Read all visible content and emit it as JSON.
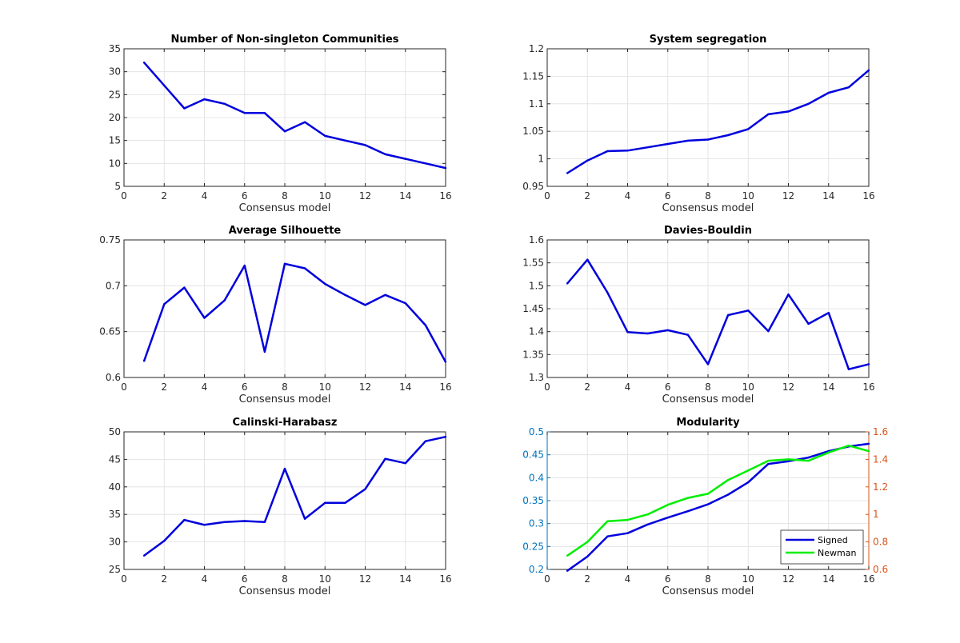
{
  "chart_data": [
    {
      "type": "line",
      "title": "Number of Non-singleton Communities",
      "xlabel": "Consensus model",
      "ylabel": "",
      "xlim": [
        0,
        16
      ],
      "ylim": [
        5,
        35
      ],
      "xticks": [
        0,
        2,
        4,
        6,
        8,
        10,
        12,
        14,
        16
      ],
      "yticks": [
        5,
        10,
        15,
        20,
        25,
        30,
        35
      ],
      "grid": true,
      "x": [
        1,
        2,
        3,
        4,
        5,
        6,
        7,
        8,
        9,
        10,
        11,
        12,
        13,
        14,
        15,
        16
      ],
      "series": [
        {
          "color": "#0000dd",
          "values": [
            32,
            27,
            22,
            24,
            23,
            21,
            21,
            17,
            19,
            16,
            15,
            14,
            12,
            11,
            10,
            9
          ]
        }
      ]
    },
    {
      "type": "line",
      "title": "System segregation",
      "xlabel": "Consensus model",
      "ylabel": "",
      "xlim": [
        0,
        16
      ],
      "ylim": [
        0.95,
        1.2
      ],
      "xticks": [
        0,
        2,
        4,
        6,
        8,
        10,
        12,
        14,
        16
      ],
      "yticks": [
        0.95,
        1,
        1.05,
        1.1,
        1.15,
        1.2
      ],
      "grid": true,
      "x": [
        1,
        2,
        3,
        4,
        5,
        6,
        7,
        8,
        9,
        10,
        11,
        12,
        13,
        14,
        15,
        16
      ],
      "series": [
        {
          "color": "#0000dd",
          "values": [
            0.974,
            0.997,
            1.014,
            1.015,
            1.021,
            1.027,
            1.033,
            1.035,
            1.043,
            1.054,
            1.081,
            1.086,
            1.1,
            1.12,
            1.13,
            1.161
          ]
        }
      ]
    },
    {
      "type": "line",
      "title": "Average Silhouette",
      "xlabel": "Consensus model",
      "ylabel": "",
      "xlim": [
        0,
        16
      ],
      "ylim": [
        0.6,
        0.75
      ],
      "xticks": [
        0,
        2,
        4,
        6,
        8,
        10,
        12,
        14,
        16
      ],
      "yticks": [
        0.6,
        0.65,
        0.7,
        0.75
      ],
      "grid": true,
      "x": [
        1,
        2,
        3,
        4,
        5,
        6,
        7,
        8,
        9,
        10,
        11,
        12,
        13,
        14,
        15,
        16
      ],
      "series": [
        {
          "color": "#0000dd",
          "values": [
            0.618,
            0.68,
            0.698,
            0.665,
            0.684,
            0.722,
            0.628,
            0.724,
            0.719,
            0.702,
            0.69,
            0.679,
            0.69,
            0.681,
            0.657,
            0.617
          ]
        }
      ]
    },
    {
      "type": "line",
      "title": "Davies-Bouldin",
      "xlabel": "Consensus model",
      "ylabel": "",
      "xlim": [
        0,
        16
      ],
      "ylim": [
        1.3,
        1.6
      ],
      "xticks": [
        0,
        2,
        4,
        6,
        8,
        10,
        12,
        14,
        16
      ],
      "yticks": [
        1.3,
        1.35,
        1.4,
        1.45,
        1.5,
        1.55,
        1.6
      ],
      "grid": true,
      "x": [
        1,
        2,
        3,
        4,
        5,
        6,
        7,
        8,
        9,
        10,
        11,
        12,
        13,
        14,
        15,
        16
      ],
      "series": [
        {
          "color": "#0000dd",
          "values": [
            1.505,
            1.557,
            1.485,
            1.399,
            1.396,
            1.403,
            1.393,
            1.329,
            1.436,
            1.446,
            1.401,
            1.481,
            1.417,
            1.441,
            1.318,
            1.329
          ]
        }
      ]
    },
    {
      "type": "line",
      "title": "Calinski-Harabasz",
      "xlabel": "Consensus model",
      "ylabel": "",
      "xlim": [
        0,
        16
      ],
      "ylim": [
        25,
        50
      ],
      "xticks": [
        0,
        2,
        4,
        6,
        8,
        10,
        12,
        14,
        16
      ],
      "yticks": [
        25,
        30,
        35,
        40,
        45,
        50
      ],
      "grid": true,
      "x": [
        1,
        2,
        3,
        4,
        5,
        6,
        7,
        8,
        9,
        10,
        11,
        12,
        13,
        14,
        15,
        16
      ],
      "series": [
        {
          "color": "#0000dd",
          "values": [
            27.5,
            30.2,
            34.0,
            33.1,
            33.6,
            33.8,
            33.6,
            43.3,
            34.2,
            37.1,
            37.1,
            39.6,
            45.1,
            44.3,
            48.3,
            49.1
          ]
        }
      ]
    },
    {
      "type": "line",
      "title": "Modularity",
      "xlabel": "Consensus model",
      "ylabel": "",
      "xlim": [
        0,
        16
      ],
      "ylim": [
        0.2,
        0.5
      ],
      "ylim_right": [
        0.6,
        1.6
      ],
      "xticks": [
        0,
        2,
        4,
        6,
        8,
        10,
        12,
        14,
        16
      ],
      "yticks": [
        0.2,
        0.25,
        0.3,
        0.35,
        0.4,
        0.45,
        0.5
      ],
      "yticks_right": [
        0.6,
        0.8,
        1,
        1.2,
        1.4,
        1.6
      ],
      "left_axis_color": "#0072bd",
      "right_axis_color": "#d95319",
      "grid": true,
      "legend_position": "bottom-right",
      "x": [
        1,
        2,
        3,
        4,
        5,
        6,
        7,
        8,
        9,
        10,
        11,
        12,
        13,
        14,
        15,
        16
      ],
      "series": [
        {
          "name": "Signed",
          "axis": "left",
          "color": "#0000dd",
          "values": [
            0.197,
            0.228,
            0.272,
            0.279,
            0.298,
            0.313,
            0.327,
            0.342,
            0.363,
            0.39,
            0.43,
            0.436,
            0.444,
            0.458,
            0.468,
            0.474
          ]
        },
        {
          "name": "Newman",
          "axis": "right",
          "color": "#00ee00",
          "values": [
            0.7,
            0.8,
            0.95,
            0.96,
            1.0,
            1.07,
            1.12,
            1.15,
            1.25,
            1.32,
            1.39,
            1.4,
            1.39,
            1.45,
            1.5,
            1.46
          ]
        }
      ]
    }
  ]
}
